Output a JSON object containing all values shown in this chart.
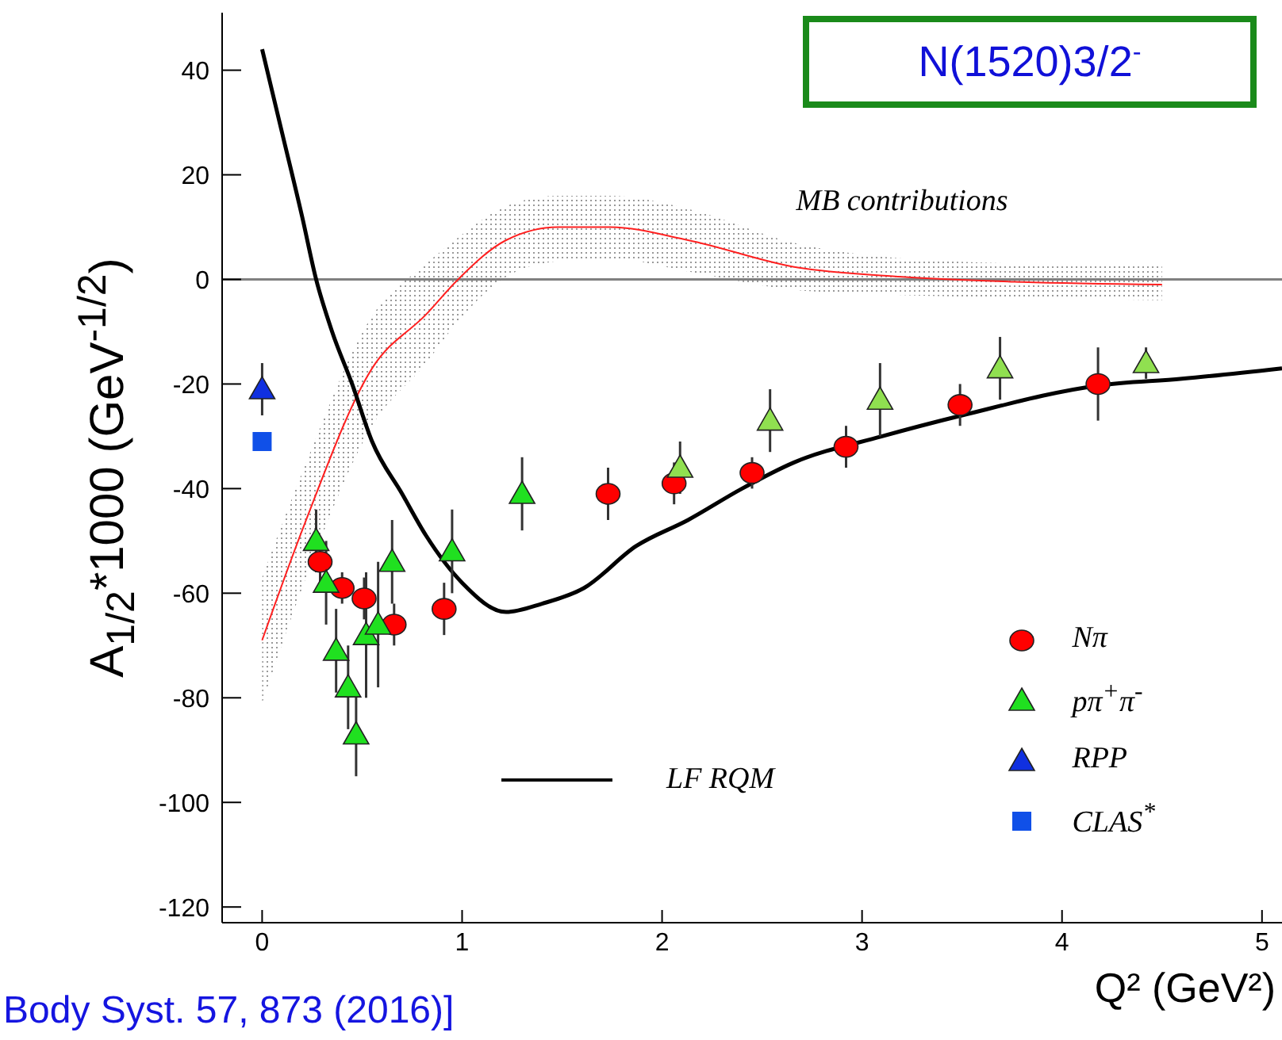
{
  "chart_data": {
    "type": "scatter",
    "title": "N(1520)3/2$^{-}$",
    "xlabel": "Q² (GeV²)",
    "ylabel": "A$_{1/2}$*1000 (GeV$^{-1/2}$)",
    "annotations": [
      "Body Syst. 57, 873 (2016)]"
    ],
    "xlim": [
      -0.2,
      5.1
    ],
    "xticks": [
      0,
      1,
      2,
      3,
      4,
      5
    ],
    "ylim": [
      -123,
      51
    ],
    "yticks": [
      -120,
      -100,
      -80,
      -60,
      -40,
      -20,
      0,
      20,
      40
    ],
    "legend": "bottom right",
    "ref_lines": [
      {
        "axis": "y",
        "value": 0,
        "color": "#808080"
      }
    ],
    "series": [
      {
        "type": "line",
        "name": "MB contributions",
        "color": "#ff2020",
        "x": [
          0,
          0.21,
          0.55,
          0.82,
          0.98,
          1.22,
          1.48,
          1.74,
          2.13,
          2.66,
          3.2,
          3.8,
          4.5
        ],
        "values": [
          -69,
          -47,
          -17,
          -6.7,
          0,
          7.5,
          10,
          10,
          7.5,
          2.4,
          0.5,
          -0.5,
          -1
        ],
        "lower": [
          -81,
          -58,
          -28,
          -16,
          -8,
          0.5,
          3.5,
          4,
          1.5,
          -2,
          -3,
          -3.5,
          -4
        ],
        "upper": [
          -57,
          -36,
          -7,
          3,
          8,
          14,
          16,
          16,
          13.5,
          7,
          4,
          3,
          2.5
        ]
      },
      {
        "type": "line",
        "name": "LF RQM",
        "color": "#000000",
        "x": [
          0,
          0.1,
          0.2,
          0.27,
          0.35,
          0.45,
          0.55,
          0.7,
          0.82,
          1.0,
          1.22,
          1.4,
          1.61,
          1.87,
          2.13,
          2.4,
          2.66,
          3.1,
          3.5,
          4.18,
          4.6,
          5.1
        ],
        "values": [
          44,
          28,
          12,
          0,
          -10,
          -20,
          -31,
          -41,
          -49,
          -58,
          -63.6,
          -62,
          -59,
          -51,
          -46,
          -40,
          -35,
          -30,
          -26,
          -20.3,
          -19,
          -17
        ]
      },
      {
        "name": "Nπ",
        "color": "#ff0000",
        "marker": "circle",
        "x": [
          0.29,
          0.4,
          0.51,
          0.66,
          0.91,
          1.73,
          2.06,
          2.45,
          2.92,
          3.49,
          4.18
        ],
        "values": [
          -54,
          -59,
          -61,
          -66,
          -63,
          -41,
          -39,
          -37,
          -32,
          -24,
          -20
        ],
        "errors": [
          4,
          3,
          4,
          4,
          5,
          5,
          4,
          3,
          4,
          4,
          7
        ]
      },
      {
        "name": "pπ$^{+}$π$^{-}$",
        "color": "#20e020",
        "marker": "triangle",
        "x": [
          0.27,
          0.32,
          0.37,
          0.43,
          0.47,
          0.52,
          0.58,
          0.65,
          0.95,
          1.3
        ],
        "values": [
          -50,
          -58,
          -71,
          -78,
          -87,
          -68,
          -66,
          -54,
          -52,
          -41
        ],
        "errors": [
          6,
          8,
          8,
          8,
          8,
          12,
          12,
          8,
          8,
          7
        ]
      },
      {
        "color": "#90e050",
        "marker": "triangle",
        "x": [
          2.09,
          2.54,
          3.09,
          3.69,
          4.42
        ],
        "values": [
          -36,
          -27,
          -23,
          -17,
          -16
        ],
        "errors": [
          5,
          6,
          7,
          6,
          3
        ]
      },
      {
        "name": "RPP",
        "color": "#1030e0",
        "marker": "triangle",
        "x": [
          0
        ],
        "values": [
          -21
        ],
        "errors": [
          5
        ]
      },
      {
        "name": "CLAS$^{*}$",
        "color": "#1050e8",
        "marker": "square",
        "x": [
          0
        ],
        "values": [
          -31
        ]
      }
    ]
  }
}
